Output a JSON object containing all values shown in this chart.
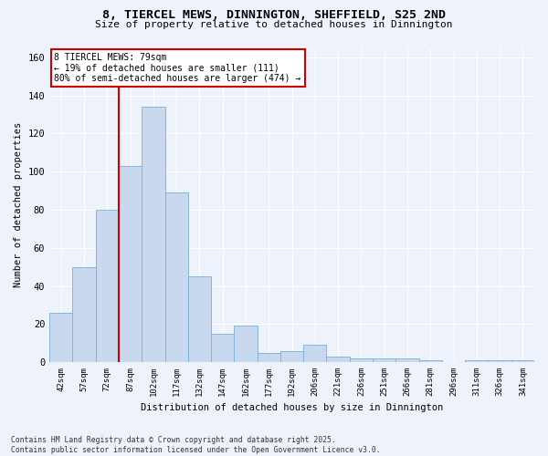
{
  "title_line1": "8, TIERCEL MEWS, DINNINGTON, SHEFFIELD, S25 2ND",
  "title_line2": "Size of property relative to detached houses in Dinnington",
  "xlabel": "Distribution of detached houses by size in Dinnington",
  "ylabel": "Number of detached properties",
  "categories": [
    "42sqm",
    "57sqm",
    "72sqm",
    "87sqm",
    "102sqm",
    "117sqm",
    "132sqm",
    "147sqm",
    "162sqm",
    "177sqm",
    "192sqm",
    "206sqm",
    "221sqm",
    "236sqm",
    "251sqm",
    "266sqm",
    "281sqm",
    "296sqm",
    "311sqm",
    "326sqm",
    "341sqm"
  ],
  "values": [
    26,
    50,
    80,
    103,
    134,
    89,
    45,
    15,
    19,
    5,
    6,
    9,
    3,
    2,
    2,
    2,
    1,
    0,
    1,
    1,
    1
  ],
  "bar_color": "#c8d9ef",
  "bar_edge_color": "#7bafd4",
  "vline_x": 2.5,
  "vline_color": "#cc0000",
  "annotation_text": "8 TIERCEL MEWS: 79sqm\n← 19% of detached houses are smaller (111)\n80% of semi-detached houses are larger (474) →",
  "annotation_box_color": "#ffffff",
  "annotation_box_edge_color": "#cc0000",
  "ylim": [
    0,
    165
  ],
  "yticks": [
    0,
    20,
    40,
    60,
    80,
    100,
    120,
    140,
    160
  ],
  "footer_line1": "Contains HM Land Registry data © Crown copyright and database right 2025.",
  "footer_line2": "Contains public sector information licensed under the Open Government Licence v3.0.",
  "bg_color": "#eef2fa",
  "plot_bg_color": "#eef2fa"
}
